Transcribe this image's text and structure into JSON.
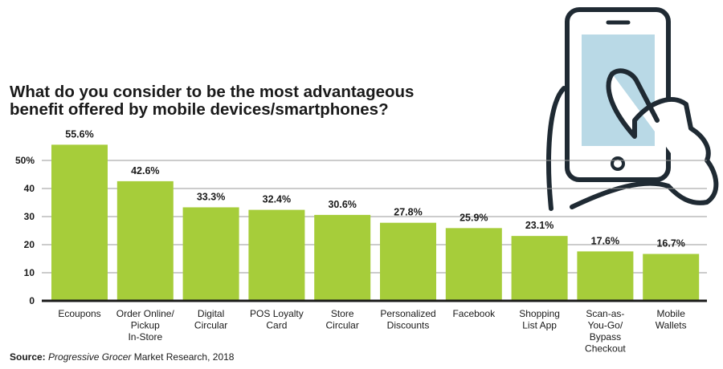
{
  "source": {
    "label": "Source:",
    "publication": "Progressive Grocer",
    "rest": " Market Research, 2018"
  },
  "chart_data": {
    "type": "bar",
    "title_lines": [
      "What do you consider to be the most advantageous",
      "benefit offered by mobile devices/smartphones?"
    ],
    "categories": [
      [
        "Ecoupons"
      ],
      [
        "Order Online/",
        "Pickup",
        "In-Store"
      ],
      [
        "Digital",
        "Circular"
      ],
      [
        "POS Loyalty",
        "Card"
      ],
      [
        "Store",
        "Circular"
      ],
      [
        "Personalized",
        "Discounts"
      ],
      [
        "Facebook"
      ],
      [
        "Shopping",
        "List App"
      ],
      [
        "Scan-as-",
        "You-Go/",
        "Bypass",
        "Checkout"
      ],
      [
        "Mobile",
        "Wallets"
      ]
    ],
    "values": [
      55.6,
      42.6,
      33.3,
      32.4,
      30.6,
      27.8,
      25.9,
      23.1,
      17.6,
      16.7
    ],
    "value_labels": [
      "55.6%",
      "42.6%",
      "33.3%",
      "32.4%",
      "30.6%",
      "27.8%",
      "25.9%",
      "23.1%",
      "17.6%",
      "16.7%"
    ],
    "y_ticks": [
      0,
      10,
      20,
      30,
      40,
      50
    ],
    "y_tick_labels": [
      "0",
      "10",
      "20",
      "30",
      "40",
      "50%"
    ],
    "ylim": [
      0,
      50
    ],
    "grid": true,
    "bar_color": "#a6cd3a",
    "xlabel": "",
    "ylabel": ""
  },
  "illustration": {
    "icon": "hand-holding-smartphone",
    "screen_color": "#b9d9e6",
    "outline_color": "#1f2a33"
  }
}
